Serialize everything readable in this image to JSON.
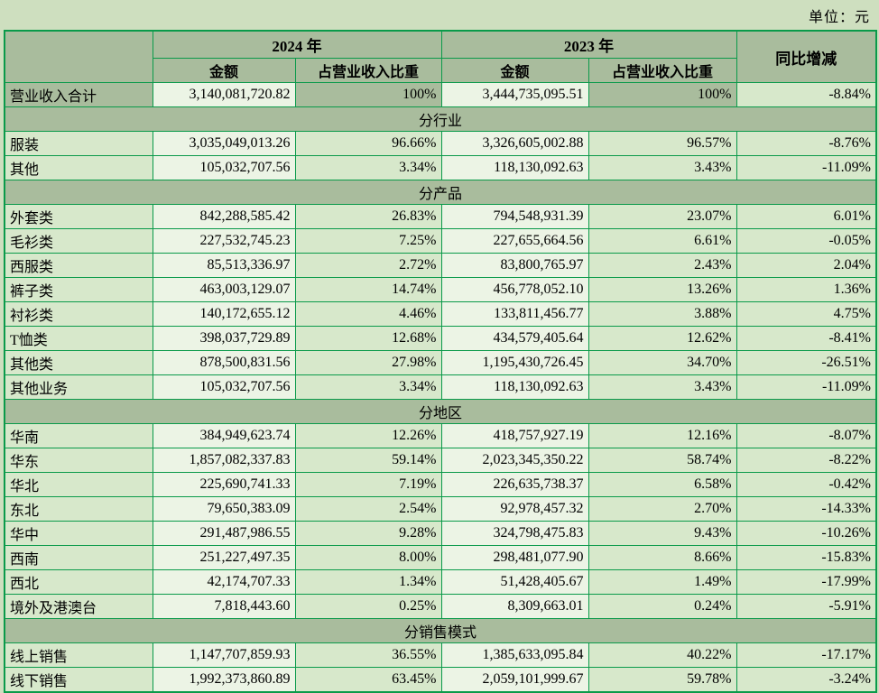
{
  "unit_label": "单位：元",
  "colors": {
    "page_bg": "#cedfbf",
    "header_bg": "#a9bc9d",
    "cell_bg": "#d7e8cb",
    "amount_bg": "#ecf4e5",
    "border": "#0a9a4a"
  },
  "table": {
    "header": {
      "year_2024": "2024 年",
      "year_2023": "2023 年",
      "yoy": "同比增减",
      "amount_2024": "金额",
      "pct_2024": "占营业收入比重",
      "amount_2023": "金额",
      "pct_2023": "占营业收入比重"
    },
    "total_row": {
      "label": "营业收入合计",
      "a24": "3,140,081,720.82",
      "p24": "100%",
      "a23": "3,444,735,095.51",
      "p23": "100%",
      "yoy": "-8.84%"
    },
    "sections": [
      {
        "title": "分行业",
        "rows": [
          {
            "label": "服装",
            "a24": "3,035,049,013.26",
            "p24": "96.66%",
            "a23": "3,326,605,002.88",
            "p23": "96.57%",
            "yoy": "-8.76%"
          },
          {
            "label": "其他",
            "a24": "105,032,707.56",
            "p24": "3.34%",
            "a23": "118,130,092.63",
            "p23": "3.43%",
            "yoy": "-11.09%"
          }
        ]
      },
      {
        "title": "分产品",
        "rows": [
          {
            "label": "外套类",
            "a24": "842,288,585.42",
            "p24": "26.83%",
            "a23": "794,548,931.39",
            "p23": "23.07%",
            "yoy": "6.01%"
          },
          {
            "label": "毛衫类",
            "a24": "227,532,745.23",
            "p24": "7.25%",
            "a23": "227,655,664.56",
            "p23": "6.61%",
            "yoy": "-0.05%"
          },
          {
            "label": "西服类",
            "a24": "85,513,336.97",
            "p24": "2.72%",
            "a23": "83,800,765.97",
            "p23": "2.43%",
            "yoy": "2.04%"
          },
          {
            "label": "裤子类",
            "a24": "463,003,129.07",
            "p24": "14.74%",
            "a23": "456,778,052.10",
            "p23": "13.26%",
            "yoy": "1.36%"
          },
          {
            "label": "衬衫类",
            "a24": "140,172,655.12",
            "p24": "4.46%",
            "a23": "133,811,456.77",
            "p23": "3.88%",
            "yoy": "4.75%"
          },
          {
            "label": "T恤类",
            "a24": "398,037,729.89",
            "p24": "12.68%",
            "a23": "434,579,405.64",
            "p23": "12.62%",
            "yoy": "-8.41%"
          },
          {
            "label": "其他类",
            "a24": "878,500,831.56",
            "p24": "27.98%",
            "a23": "1,195,430,726.45",
            "p23": "34.70%",
            "yoy": "-26.51%"
          },
          {
            "label": "其他业务",
            "a24": "105,032,707.56",
            "p24": "3.34%",
            "a23": "118,130,092.63",
            "p23": "3.43%",
            "yoy": "-11.09%"
          }
        ]
      },
      {
        "title": "分地区",
        "rows": [
          {
            "label": "华南",
            "a24": "384,949,623.74",
            "p24": "12.26%",
            "a23": "418,757,927.19",
            "p23": "12.16%",
            "yoy": "-8.07%"
          },
          {
            "label": "华东",
            "a24": "1,857,082,337.83",
            "p24": "59.14%",
            "a23": "2,023,345,350.22",
            "p23": "58.74%",
            "yoy": "-8.22%"
          },
          {
            "label": "华北",
            "a24": "225,690,741.33",
            "p24": "7.19%",
            "a23": "226,635,738.37",
            "p23": "6.58%",
            "yoy": "-0.42%"
          },
          {
            "label": "东北",
            "a24": "79,650,383.09",
            "p24": "2.54%",
            "a23": "92,978,457.32",
            "p23": "2.70%",
            "yoy": "-14.33%"
          },
          {
            "label": "华中",
            "a24": "291,487,986.55",
            "p24": "9.28%",
            "a23": "324,798,475.83",
            "p23": "9.43%",
            "yoy": "-10.26%"
          },
          {
            "label": "西南",
            "a24": "251,227,497.35",
            "p24": "8.00%",
            "a23": "298,481,077.90",
            "p23": "8.66%",
            "yoy": "-15.83%"
          },
          {
            "label": "西北",
            "a24": "42,174,707.33",
            "p24": "1.34%",
            "a23": "51,428,405.67",
            "p23": "1.49%",
            "yoy": "-17.99%"
          },
          {
            "label": "境外及港澳台",
            "a24": "7,818,443.60",
            "p24": "0.25%",
            "a23": "8,309,663.01",
            "p23": "0.24%",
            "yoy": "-5.91%"
          }
        ]
      },
      {
        "title": "分销售模式",
        "rows": [
          {
            "label": "线上销售",
            "a24": "1,147,707,859.93",
            "p24": "36.55%",
            "a23": "1,385,633,095.84",
            "p23": "40.22%",
            "yoy": "-17.17%"
          },
          {
            "label": "线下销售",
            "a24": "1,992,373,860.89",
            "p24": "63.45%",
            "a23": "2,059,101,999.67",
            "p23": "59.78%",
            "yoy": "-3.24%"
          }
        ]
      }
    ]
  }
}
